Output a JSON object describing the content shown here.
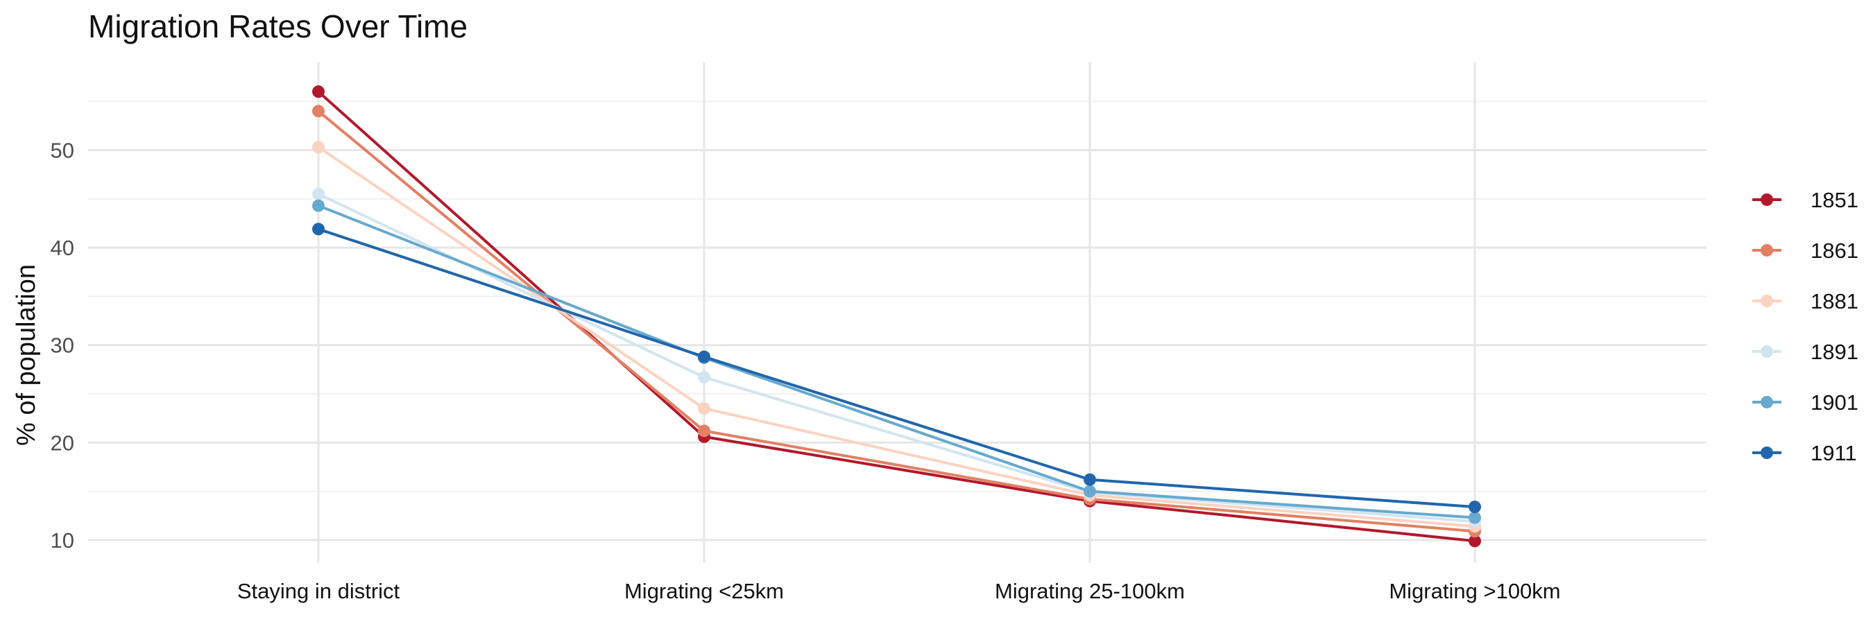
{
  "chart_data": {
    "type": "line",
    "title": "Migration Rates Over Time",
    "xlabel": "",
    "ylabel": "% of population",
    "categories": [
      "Staying in district",
      "Migrating <25km",
      "Migrating 25-100km",
      "Migrating >100km"
    ],
    "yticks": [
      10,
      20,
      30,
      40,
      50
    ],
    "ylim": [
      8.5,
      59
    ],
    "grid": true,
    "legend_position": "right",
    "series": [
      {
        "name": "1851",
        "color": "#b2182b",
        "values": [
          56.0,
          20.6,
          14.0,
          9.9
        ]
      },
      {
        "name": "1861",
        "color": "#e28063",
        "values": [
          54.0,
          21.2,
          14.2,
          10.9
        ]
      },
      {
        "name": "1881",
        "color": "#fbd3c0",
        "values": [
          50.3,
          23.5,
          14.6,
          11.4
        ]
      },
      {
        "name": "1891",
        "color": "#d1e5f0",
        "values": [
          45.5,
          26.7,
          14.9,
          11.9
        ]
      },
      {
        "name": "1901",
        "color": "#67a9cf",
        "values": [
          44.3,
          28.7,
          15.0,
          12.3
        ]
      },
      {
        "name": "1911",
        "color": "#2166ac",
        "values": [
          41.9,
          28.8,
          16.2,
          13.4
        ]
      }
    ]
  }
}
